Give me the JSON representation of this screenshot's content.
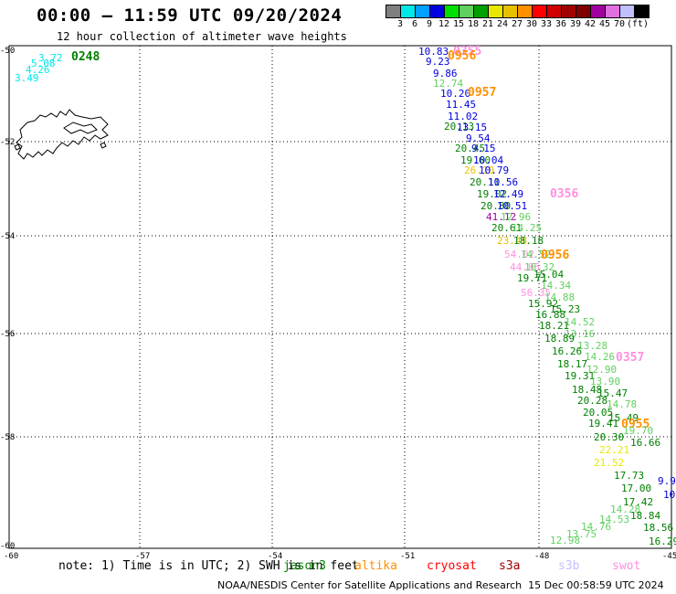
{
  "title": "00:00 – 11:59 UTC 09/20/2024",
  "subtitle": "12 hour collection of altimeter wave heights",
  "scale": {
    "colors": [
      "#7f7f7f",
      "#00e8e8",
      "#00a0ff",
      "#0000e0",
      "#00e000",
      "#60d060",
      "#00a000",
      "#e8e800",
      "#e8c000",
      "#ff9000",
      "#ff0000",
      "#d00000",
      "#a00000",
      "#800000",
      "#a000a0",
      "#e070e0",
      "#c0c0ff",
      "#000000"
    ],
    "labels": [
      "3",
      "6",
      "9",
      "12",
      "15",
      "18",
      "21",
      "24",
      "27",
      "30",
      "33",
      "36",
      "39",
      "42",
      "45",
      "70",
      "(ft)"
    ]
  },
  "axes": {
    "lat_labels": [
      "-50",
      "-52",
      "-54",
      "-56",
      "-58",
      "-60"
    ],
    "lon_labels": [
      "-60",
      "-57",
      "-54",
      "-51",
      "-48",
      "-45"
    ]
  },
  "note": "note: 1) Time is in UTC; 2) SWH is in feet",
  "satellites": [
    {
      "name": "jason3",
      "color": "#008000"
    },
    {
      "name": "altika",
      "color": "#ff9000"
    },
    {
      "name": "cryosat",
      "color": "#ff0000"
    },
    {
      "name": "s3a",
      "color": "#a00000"
    },
    {
      "name": "s3b",
      "color": "#c0c0ff"
    },
    {
      "name": "swot",
      "color": "#ff90e0"
    }
  ],
  "footer": "NOAA/NESDIS Center for Satellite Applications and Research  15 Dec 00:58:59 UTC 2024",
  "wave_heights": [
    {
      "text": "3.72",
      "color": "#00e8e8"
    },
    {
      "text": "5.08",
      "color": "#00e8e8"
    },
    {
      "text": "4.26",
      "color": "#00e8e8"
    },
    {
      "text": "3.49",
      "color": "#00e8e8"
    },
    {
      "text": "0248",
      "color": "#008000"
    },
    {
      "text": "10.83",
      "color": "#0000e0"
    },
    {
      "text": "0355",
      "color": "#ff90e0"
    },
    {
      "text": "0956",
      "color": "#ff9000"
    },
    {
      "text": "9.23",
      "color": "#0000e0"
    },
    {
      "text": "9.86",
      "color": "#0000e0"
    },
    {
      "text": "12.74",
      "color": "#60d060"
    },
    {
      "text": "10.20",
      "color": "#0000e0"
    },
    {
      "text": "0957",
      "color": "#ff9000"
    },
    {
      "text": "11.45",
      "color": "#0000e0"
    },
    {
      "text": "11.02",
      "color": "#0000e0"
    },
    {
      "text": "20.13",
      "color": "#008000"
    },
    {
      "text": "13.15",
      "color": "#0000e0"
    },
    {
      "text": "9.54",
      "color": "#0000e0"
    },
    {
      "text": "20.45",
      "color": "#008000"
    },
    {
      "text": "9.15",
      "color": "#0000e0"
    },
    {
      "text": "19.60",
      "color": "#008000"
    },
    {
      "text": "10.04",
      "color": "#0000e0"
    },
    {
      "text": "26.10",
      "color": "#e8c000"
    },
    {
      "text": "10.79",
      "color": "#0000e0"
    },
    {
      "text": "20.11",
      "color": "#008000"
    },
    {
      "text": "10.56",
      "color": "#0000e0"
    },
    {
      "text": "19.02",
      "color": "#008000"
    },
    {
      "text": "12.49",
      "color": "#0000e0"
    },
    {
      "text": "0356",
      "color": "#ff90e0"
    },
    {
      "text": "20.80",
      "color": "#008000"
    },
    {
      "text": "10.51",
      "color": "#0000e0"
    },
    {
      "text": "41.12",
      "color": "#a000a0"
    },
    {
      "text": "12.96",
      "color": "#60d060"
    },
    {
      "text": "20.61",
      "color": "#008000"
    },
    {
      "text": "14.25",
      "color": "#60d060"
    },
    {
      "text": "23.48",
      "color": "#e8c000"
    },
    {
      "text": "18.18",
      "color": "#008000"
    },
    {
      "text": "54.02",
      "color": "#ff90e0"
    },
    {
      "text": "14.52",
      "color": "#60d060"
    },
    {
      "text": "0956",
      "color": "#ff9000"
    },
    {
      "text": "44.85",
      "color": "#ff90e0"
    },
    {
      "text": "16.32",
      "color": "#60d060"
    },
    {
      "text": "19.71",
      "color": "#008000"
    },
    {
      "text": "15.04",
      "color": "#008000"
    },
    {
      "text": "14.34",
      "color": "#60d060"
    },
    {
      "text": "56.35",
      "color": "#ff90e0"
    },
    {
      "text": "14.88",
      "color": "#60d060"
    },
    {
      "text": "15.92",
      "color": "#008000"
    },
    {
      "text": "15.23",
      "color": "#008000"
    },
    {
      "text": "16.88",
      "color": "#008000"
    },
    {
      "text": "14.52",
      "color": "#60d060"
    },
    {
      "text": "18.21",
      "color": "#008000"
    },
    {
      "text": "13.16",
      "color": "#60d060"
    },
    {
      "text": "18.89",
      "color": "#008000"
    },
    {
      "text": "13.28",
      "color": "#60d060"
    },
    {
      "text": "16.26",
      "color": "#008000"
    },
    {
      "text": "14.26",
      "color": "#60d060"
    },
    {
      "text": "0357",
      "color": "#ff90e0"
    },
    {
      "text": "18.17",
      "color": "#008000"
    },
    {
      "text": "12.90",
      "color": "#60d060"
    },
    {
      "text": "19.31",
      "color": "#008000"
    },
    {
      "text": "13.90",
      "color": "#60d060"
    },
    {
      "text": "18.48",
      "color": "#008000"
    },
    {
      "text": "15.47",
      "color": "#008000"
    },
    {
      "text": "20.28",
      "color": "#008000"
    },
    {
      "text": "14.78",
      "color": "#60d060"
    },
    {
      "text": "20.05",
      "color": "#008000"
    },
    {
      "text": "15.49",
      "color": "#008000"
    },
    {
      "text": "19.41",
      "color": "#008000"
    },
    {
      "text": "0955",
      "color": "#ff9000"
    },
    {
      "text": "19.70",
      "color": "#60d060"
    },
    {
      "text": "20.30",
      "color": "#008000"
    },
    {
      "text": "16.66",
      "color": "#008000"
    },
    {
      "text": "22.21",
      "color": "#e8e800"
    },
    {
      "text": "21.52",
      "color": "#e8e800"
    },
    {
      "text": "17.73",
      "color": "#008000"
    },
    {
      "text": "9.9",
      "color": "#0000e0"
    },
    {
      "text": "17.00",
      "color": "#008000"
    },
    {
      "text": "10",
      "color": "#0000e0"
    },
    {
      "text": "17.42",
      "color": "#008000"
    },
    {
      "text": "14.28",
      "color": "#60d060"
    },
    {
      "text": "18.84",
      "color": "#008000"
    },
    {
      "text": "14.53",
      "color": "#60d060"
    },
    {
      "text": "14.76",
      "color": "#60d060"
    },
    {
      "text": "18.56",
      "color": "#008000"
    },
    {
      "text": "13.75",
      "color": "#60d060"
    },
    {
      "text": "12.98",
      "color": "#60d060"
    },
    {
      "text": "16.29",
      "color": "#008000"
    }
  ]
}
